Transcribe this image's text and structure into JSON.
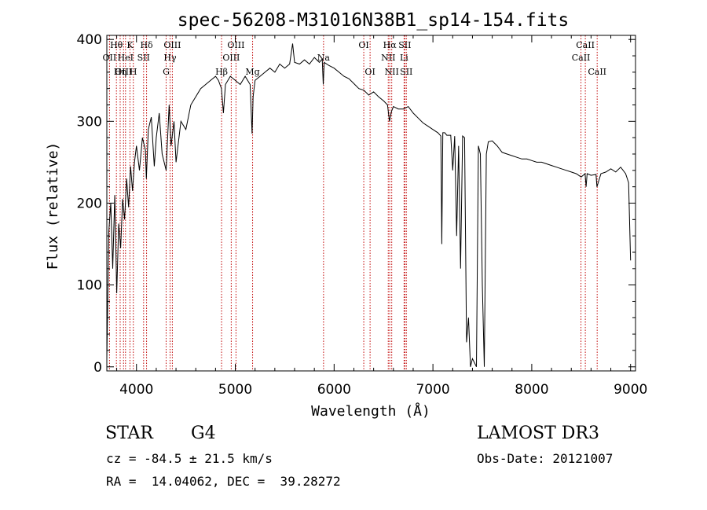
{
  "chart_data": {
    "type": "line",
    "title": "spec-56208-M31016N38B1_sp14-154.fits",
    "xlabel": "Wavelength (Å)",
    "ylabel": "Flux (relative)",
    "xlim": [
      3700,
      9050
    ],
    "ylim": [
      -5,
      405
    ],
    "xticks": [
      4000,
      5000,
      6000,
      7000,
      8000,
      9000
    ],
    "yticks": [
      0,
      100,
      200,
      300,
      400
    ],
    "series": [
      {
        "name": "flux",
        "x": [
          3700,
          3720,
          3740,
          3760,
          3780,
          3800,
          3820,
          3840,
          3860,
          3880,
          3900,
          3920,
          3940,
          3960,
          3980,
          4000,
          4030,
          4060,
          4090,
          4100,
          4120,
          4150,
          4180,
          4200,
          4230,
          4260,
          4300,
          4330,
          4350,
          4380,
          4400,
          4450,
          4500,
          4550,
          4600,
          4650,
          4700,
          4750,
          4800,
          4830,
          4860,
          4880,
          4900,
          4950,
          5000,
          5050,
          5100,
          5150,
          5170,
          5180,
          5200,
          5250,
          5300,
          5350,
          5400,
          5450,
          5500,
          5550,
          5580,
          5600,
          5650,
          5700,
          5750,
          5800,
          5850,
          5880,
          5890,
          5900,
          5950,
          6000,
          6050,
          6100,
          6150,
          6200,
          6250,
          6300,
          6350,
          6400,
          6450,
          6500,
          6540,
          6560,
          6580,
          6600,
          6650,
          6700,
          6750,
          6800,
          6850,
          6900,
          6950,
          7000,
          7050,
          7080,
          7090,
          7100,
          7120,
          7140,
          7160,
          7180,
          7200,
          7220,
          7240,
          7260,
          7280,
          7300,
          7320,
          7340,
          7360,
          7380,
          7400,
          7420,
          7440,
          7460,
          7480,
          7500,
          7520,
          7540,
          7560,
          7600,
          7650,
          7700,
          7750,
          7800,
          7850,
          7900,
          7950,
          8000,
          8050,
          8100,
          8150,
          8200,
          8250,
          8300,
          8350,
          8400,
          8450,
          8500,
          8540,
          8550,
          8560,
          8600,
          8650,
          8660,
          8700,
          8750,
          8800,
          8850,
          8900,
          8950,
          8980,
          9000
        ],
        "y": [
          10,
          165,
          200,
          120,
          210,
          90,
          175,
          145,
          205,
          180,
          230,
          195,
          245,
          215,
          250,
          270,
          240,
          280,
          265,
          230,
          290,
          305,
          245,
          280,
          310,
          260,
          240,
          320,
          270,
          300,
          250,
          300,
          290,
          320,
          330,
          340,
          345,
          350,
          355,
          350,
          340,
          310,
          345,
          355,
          350,
          345,
          355,
          345,
          285,
          330,
          350,
          355,
          360,
          365,
          360,
          370,
          365,
          370,
          395,
          372,
          370,
          375,
          370,
          378,
          372,
          376,
          345,
          372,
          368,
          365,
          360,
          355,
          352,
          346,
          340,
          338,
          332,
          336,
          330,
          325,
          320,
          300,
          312,
          318,
          315,
          315,
          318,
          310,
          304,
          298,
          294,
          290,
          286,
          282,
          150,
          286,
          286,
          283,
          283,
          283,
          240,
          282,
          160,
          270,
          120,
          282,
          280,
          30,
          60,
          0,
          10,
          5,
          0,
          270,
          260,
          100,
          0,
          260,
          275,
          276,
          270,
          262,
          260,
          258,
          256,
          254,
          254,
          252,
          250,
          250,
          248,
          246,
          244,
          242,
          240,
          238,
          236,
          232,
          236,
          220,
          236,
          234,
          235,
          220,
          236,
          238,
          242,
          238,
          244,
          236,
          225,
          130
        ]
      }
    ],
    "lines": [
      {
        "label": "Hθ",
        "x": 3797,
        "row": 1
      },
      {
        "label": "OII",
        "x": 3727,
        "row": 2
      },
      {
        "label": "OIII",
        "x": 3869,
        "row": 3
      },
      {
        "label": "K",
        "x": 3934,
        "row": 1
      },
      {
        "label": "HeI",
        "x": 3889,
        "row": 2
      },
      {
        "label": "Hη",
        "x": 3835,
        "row": 3
      },
      {
        "label": "Hδ",
        "x": 4102,
        "row": 1
      },
      {
        "label": "SII",
        "x": 4072,
        "row": 2
      },
      {
        "label": "H",
        "x": 3968,
        "row": 3
      },
      {
        "label": "OIII",
        "x": 4363,
        "row": 1
      },
      {
        "label": "Hγ",
        "x": 4340,
        "row": 2
      },
      {
        "label": "G",
        "x": 4300,
        "row": 3
      },
      {
        "label": "OIII",
        "x": 5007,
        "row": 1
      },
      {
        "label": "OIII",
        "x": 4959,
        "row": 2
      },
      {
        "label": "Hβ",
        "x": 4861,
        "row": 3
      },
      {
        "label": "Mg",
        "x": 5175,
        "row": 3
      },
      {
        "label": "Na",
        "x": 5893,
        "row": 2
      },
      {
        "label": "OI",
        "x": 6300,
        "row": 1
      },
      {
        "label": "OI",
        "x": 6364,
        "row": 3
      },
      {
        "label": "Hα",
        "x": 6563,
        "row": 1
      },
      {
        "label": "SII",
        "x": 6716,
        "row": 1
      },
      {
        "label": "NII",
        "x": 6548,
        "row": 2
      },
      {
        "label": "Li",
        "x": 6708,
        "row": 2
      },
      {
        "label": "NII",
        "x": 6583,
        "row": 3
      },
      {
        "label": "SII",
        "x": 6731,
        "row": 3
      },
      {
        "label": "CaII",
        "x": 8542,
        "row": 1
      },
      {
        "label": "CaII",
        "x": 8498,
        "row": 2
      },
      {
        "label": "CaII",
        "x": 8662,
        "row": 3
      }
    ]
  },
  "info": {
    "class": "STAR",
    "subclass": "G4",
    "survey": "LAMOST DR3",
    "cz": "cz = -84.5 ± 21.5 km/s",
    "obs_date": "Obs-Date: 20121007",
    "coords": "RA =  14.04062, DEC =  39.28272"
  }
}
